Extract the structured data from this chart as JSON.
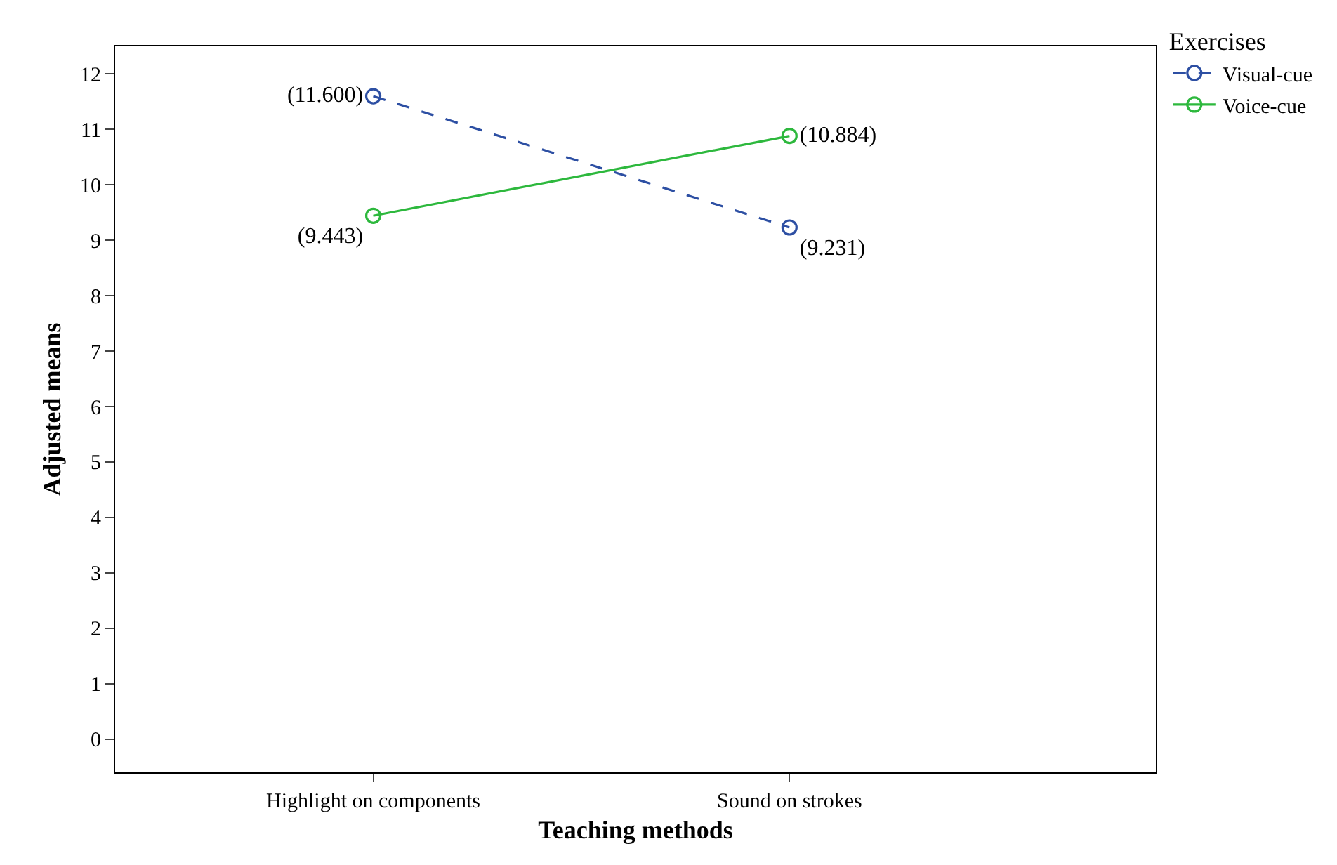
{
  "chart_data": {
    "type": "line",
    "xlabel": "Teaching methods",
    "ylabel": "Adjusted means",
    "legend_title": "Exercises",
    "categories": [
      "Highlight on components",
      "Sound on strokes"
    ],
    "series": [
      {
        "name": "Visual-cue",
        "color": "#2d4fa3",
        "values": [
          11.6,
          9.231
        ],
        "value_labels": [
          "(11.600)",
          "(9.231)"
        ],
        "line_style": "dashed"
      },
      {
        "name": "Voice-cue",
        "color": "#2db83d",
        "values": [
          9.443,
          10.884
        ],
        "value_labels": [
          "(9.443)",
          "(10.884)"
        ],
        "line_style": "solid"
      }
    ],
    "ylim": [
      -0.6,
      12.5
    ],
    "yticks": [
      0,
      1,
      2,
      3,
      4,
      5,
      6,
      7,
      8,
      9,
      10,
      11,
      12
    ],
    "marker": "circle",
    "legend": "top right"
  }
}
